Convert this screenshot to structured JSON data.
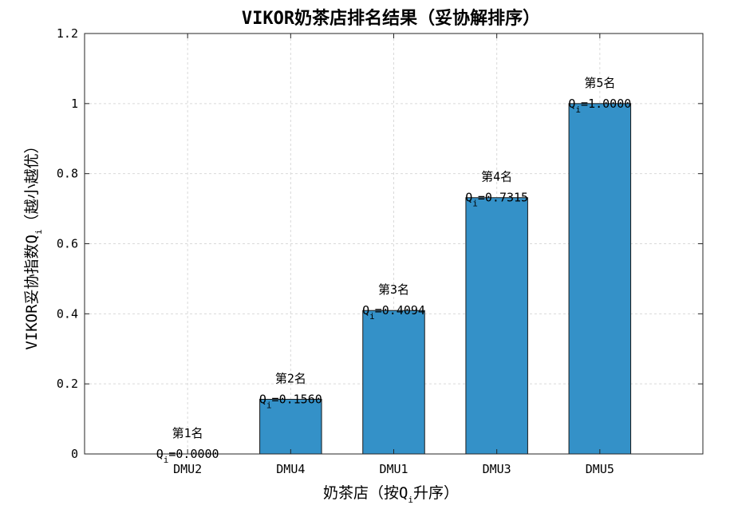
{
  "chart_data": {
    "type": "bar",
    "title": "VIKOR奶茶店排名结果（妥协解排序）",
    "xlabel_prefix": "奶茶店（按Q",
    "xlabel_sub": "i",
    "xlabel_suffix": "升序）",
    "ylabel_prefix": "VIKOR妥协指数Q",
    "ylabel_sub": "i",
    "ylabel_suffix": "（越小越优）",
    "categories": [
      "DMU2",
      "DMU4",
      "DMU1",
      "DMU3",
      "DMU5"
    ],
    "values": [
      0.0,
      0.156,
      0.4094,
      0.7315,
      1.0
    ],
    "rank_labels": [
      "第1名",
      "第2名",
      "第3名",
      "第4名",
      "第5名"
    ],
    "value_labels": [
      "=0.0000",
      "=0.1560",
      "=0.4094",
      "=0.7315",
      "=1.0000"
    ],
    "value_label_prefix": "Q",
    "value_label_sub": "i",
    "ylim": [
      0,
      1.2
    ],
    "yticks": [
      "0",
      "0.2",
      "0.4",
      "0.6",
      "0.8",
      "1",
      "1.2"
    ],
    "grid": true,
    "bar_color": "#3491C8",
    "bar_edge_color": "#1a1a1a"
  }
}
